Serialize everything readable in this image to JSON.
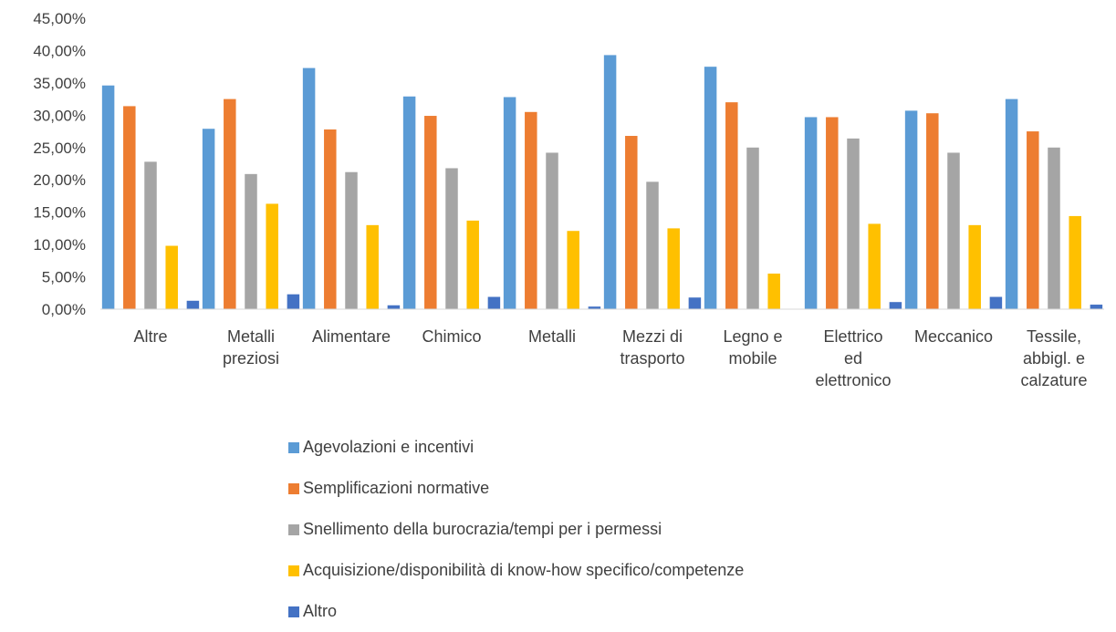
{
  "chart_data": {
    "type": "bar",
    "categories": [
      [
        "Altre"
      ],
      [
        "Metalli",
        "preziosi"
      ],
      [
        "Alimentare"
      ],
      [
        "Chimico"
      ],
      [
        "Metalli"
      ],
      [
        "Mezzi di",
        "trasporto"
      ],
      [
        "Legno e",
        "mobile"
      ],
      [
        "Elettrico",
        "ed",
        "elettronico"
      ],
      [
        "Meccanico"
      ],
      [
        "Tessile,",
        "abbigl. e",
        "calzature"
      ]
    ],
    "series": [
      {
        "name": "Agevolazioni e incentivi",
        "color": "#5B9BD5",
        "values": [
          34.6,
          27.9,
          37.3,
          32.9,
          32.8,
          39.3,
          37.5,
          29.7,
          30.7,
          32.5
        ]
      },
      {
        "name": "Semplificazioni normative",
        "color": "#ED7D31",
        "values": [
          31.4,
          32.5,
          27.8,
          29.9,
          30.5,
          26.8,
          32.0,
          29.7,
          30.3,
          27.5
        ]
      },
      {
        "name": "Snellimento della burocrazia/tempi per i permessi",
        "color": "#A5A5A5",
        "values": [
          22.8,
          20.9,
          21.2,
          21.8,
          24.2,
          19.7,
          25.0,
          26.4,
          24.2,
          25.0
        ]
      },
      {
        "name": "Acquisizione/disponibilità di know-how specifico/competenze",
        "color": "#FFC000",
        "values": [
          9.8,
          16.3,
          13.0,
          13.7,
          12.1,
          12.5,
          5.5,
          13.2,
          13.0,
          14.4
        ]
      },
      {
        "name": "Altro",
        "color": "#4472C4",
        "values": [
          1.3,
          2.3,
          0.6,
          1.9,
          0.4,
          1.8,
          0.0,
          1.1,
          1.9,
          0.7
        ]
      }
    ],
    "yticks": [
      "0,00%",
      "5,00%",
      "10,00%",
      "15,00%",
      "20,00%",
      "25,00%",
      "30,00%",
      "35,00%",
      "40,00%",
      "45,00%"
    ],
    "ylim": [
      0,
      45
    ],
    "grid": false,
    "legend_position": "bottom"
  }
}
